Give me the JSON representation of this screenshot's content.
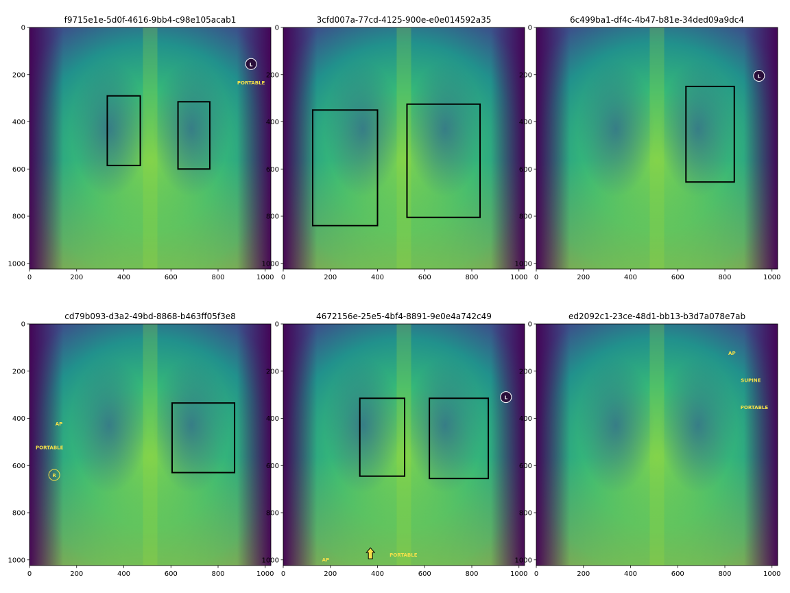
{
  "chart_data": [
    {
      "type": "image",
      "title": "f9715e1e-5d0f-4616-9bb4-c98e105acab1",
      "xlim": [
        0,
        1024
      ],
      "ylim": [
        1024,
        0
      ],
      "xticks": [
        "0",
        "200",
        "400",
        "600",
        "800",
        "1000"
      ],
      "yticks": [
        "0",
        "200",
        "400",
        "600",
        "800",
        "1000"
      ],
      "boxes": [
        {
          "x": [
            330,
            470
          ],
          "y": [
            290,
            585
          ]
        },
        {
          "x": [
            630,
            765
          ],
          "y": [
            315,
            600
          ]
        }
      ],
      "markers": [
        {
          "text": "L",
          "kind": "circle",
          "x": 940,
          "y": 155
        },
        {
          "text": "PORTABLE",
          "kind": "text",
          "x": 940,
          "y": 235
        }
      ]
    },
    {
      "type": "image",
      "title": "3cfd007a-77cd-4125-900e-e0e014592a35",
      "xlim": [
        0,
        1024
      ],
      "ylim": [
        1024,
        0
      ],
      "xticks": [
        "0",
        "200",
        "400",
        "600",
        "800",
        "1000"
      ],
      "yticks": [
        "0",
        "200",
        "400",
        "600",
        "800",
        "1000"
      ],
      "boxes": [
        {
          "x": [
            125,
            400
          ],
          "y": [
            350,
            840
          ]
        },
        {
          "x": [
            525,
            835
          ],
          "y": [
            325,
            805
          ]
        }
      ],
      "markers": []
    },
    {
      "type": "image",
      "title": "6c499ba1-df4c-4b47-b81e-34ded09a9dc4",
      "xlim": [
        0,
        1024
      ],
      "ylim": [
        1024,
        0
      ],
      "xticks": [
        "0",
        "200",
        "400",
        "600",
        "800",
        "1000"
      ],
      "yticks": [
        "0",
        "200",
        "400",
        "600",
        "800",
        "1000"
      ],
      "boxes": [
        {
          "x": [
            635,
            840
          ],
          "y": [
            250,
            655
          ]
        }
      ],
      "markers": [
        {
          "text": "L",
          "kind": "circle",
          "x": 945,
          "y": 205
        }
      ]
    },
    {
      "type": "image",
      "title": "cd79b093-d3a2-49bd-8868-b463ff05f3e8",
      "xlim": [
        0,
        1024
      ],
      "ylim": [
        1024,
        0
      ],
      "xticks": [
        "0",
        "200",
        "400",
        "600",
        "800",
        "1000"
      ],
      "yticks": [
        "0",
        "200",
        "400",
        "600",
        "800",
        "1000"
      ],
      "boxes": [
        {
          "x": [
            605,
            870
          ],
          "y": [
            335,
            630
          ]
        }
      ],
      "markers": [
        {
          "text": "AP",
          "kind": "text",
          "x": 125,
          "y": 425
        },
        {
          "text": "PORTABLE",
          "kind": "text",
          "x": 85,
          "y": 525
        },
        {
          "text": "R",
          "kind": "circle-outline",
          "x": 105,
          "y": 640
        }
      ]
    },
    {
      "type": "image",
      "title": "4672156e-25e5-4bf4-8891-9e0e4a742c49",
      "xlim": [
        0,
        1024
      ],
      "ylim": [
        1024,
        0
      ],
      "xticks": [
        "0",
        "200",
        "400",
        "600",
        "800",
        "1000"
      ],
      "yticks": [
        "0",
        "200",
        "400",
        "600",
        "800",
        "1000"
      ],
      "boxes": [
        {
          "x": [
            325,
            515
          ],
          "y": [
            315,
            645
          ]
        },
        {
          "x": [
            620,
            870
          ],
          "y": [
            315,
            655
          ]
        }
      ],
      "markers": [
        {
          "text": "L",
          "kind": "circle",
          "x": 945,
          "y": 310
        },
        {
          "text": "AP",
          "kind": "text",
          "x": 180,
          "y": 1000
        },
        {
          "text": "PORTABLE",
          "kind": "text",
          "x": 510,
          "y": 980
        },
        {
          "text": "",
          "kind": "arrow",
          "x": 370,
          "y": 975
        }
      ]
    },
    {
      "type": "image",
      "title": "ed2092c1-23ce-48d1-bb13-b3d7a078e7ab",
      "xlim": [
        0,
        1024
      ],
      "ylim": [
        1024,
        0
      ],
      "xticks": [
        "0",
        "200",
        "400",
        "600",
        "800",
        "1000"
      ],
      "yticks": [
        "0",
        "200",
        "400",
        "600",
        "800",
        "1000"
      ],
      "boxes": [],
      "markers": [
        {
          "text": "AP",
          "kind": "text",
          "x": 830,
          "y": 125
        },
        {
          "text": "SUPINE",
          "kind": "text",
          "x": 910,
          "y": 240
        },
        {
          "text": "PORTABLE",
          "kind": "text",
          "x": 925,
          "y": 355
        }
      ]
    }
  ]
}
